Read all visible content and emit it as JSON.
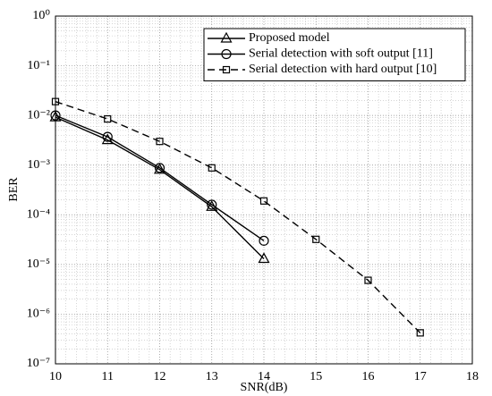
{
  "chart_data": {
    "type": "line",
    "xlabel": "SNR(dB)",
    "ylabel": "BER",
    "yscale": "log",
    "grid": true,
    "legend": "upper right",
    "xlim": [
      10,
      18
    ],
    "xticks": [
      10,
      11,
      12,
      13,
      14,
      15,
      16,
      17,
      18
    ],
    "ylim": [
      1e-07,
      1
    ],
    "yticks": [
      {
        "value": 1,
        "label": "10⁰"
      },
      {
        "value": 0.1,
        "label": "10⁻¹"
      },
      {
        "value": 0.01,
        "label": "10⁻²"
      },
      {
        "value": 0.001,
        "label": "10⁻³"
      },
      {
        "value": 0.0001,
        "label": "10⁻⁴"
      },
      {
        "value": 1e-05,
        "label": "10⁻⁵"
      },
      {
        "value": 1e-06,
        "label": "10⁻⁶"
      },
      {
        "value": 1e-07,
        "label": "10⁻⁷"
      }
    ],
    "series": [
      {
        "name": "Proposed model",
        "color": "#000000",
        "linestyle": "solid",
        "marker": "triangle",
        "x": [
          10,
          11,
          12,
          13,
          14
        ],
        "values": [
          0.0092,
          0.0032,
          0.00081,
          0.000145,
          1.3e-05
        ]
      },
      {
        "name": "Serial detection with soft output [11]",
        "color": "#000000",
        "linestyle": "solid",
        "marker": "circle",
        "x": [
          10,
          11,
          12,
          13,
          14
        ],
        "values": [
          0.01,
          0.0037,
          0.00088,
          0.00016,
          3e-05
        ]
      },
      {
        "name": "Serial detection with hard output [10]",
        "color": "#000000",
        "linestyle": "dashed",
        "marker": "square",
        "x": [
          10,
          11,
          12,
          13,
          14,
          15,
          16,
          17
        ],
        "values": [
          0.019,
          0.0085,
          0.003,
          0.00088,
          0.00019,
          3.2e-05,
          4.8e-06,
          4.2e-07
        ]
      }
    ]
  }
}
